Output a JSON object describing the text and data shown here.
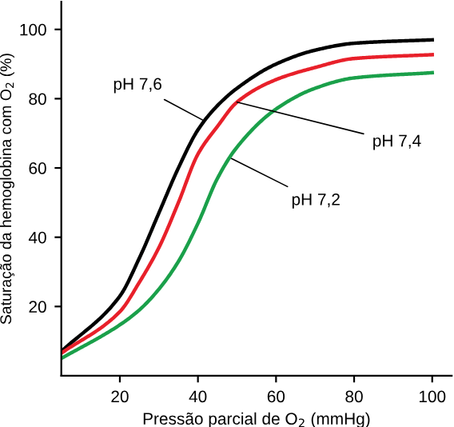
{
  "chart_data": {
    "type": "line",
    "xlabel": "Pressão parcial de O$_{2}$ (mmHg)",
    "ylabel": "Saturação da hemoglobina com O$_{2}$ (%)",
    "xlim": [
      5,
      105
    ],
    "ylim": [
      0,
      108
    ],
    "xticks": [
      20,
      40,
      60,
      80,
      100
    ],
    "yticks": [
      20,
      40,
      60,
      80,
      100
    ],
    "grid": false,
    "marker": "none",
    "line_style": "solid",
    "x": [
      5,
      20,
      25,
      30,
      35,
      40,
      45,
      50,
      60,
      70,
      80,
      100
    ],
    "series": [
      {
        "color": "#000000",
        "values": [
          7,
          23,
          34,
          47,
          60,
          71,
          78,
          83,
          90,
          94,
          96,
          97
        ]
      },
      {
        "color": "#e8202a",
        "values": [
          6.5,
          18.5,
          27,
          37,
          50,
          64,
          72,
          79,
          85.5,
          89,
          91.6,
          92.7
        ]
      },
      {
        "color": "#1aa04a",
        "values": [
          5,
          14.7,
          19,
          25,
          33,
          44,
          57,
          66,
          77,
          83,
          86,
          87.5
        ]
      }
    ],
    "annotations": [
      {
        "text": "pH 7,6",
        "x": 41.6,
        "y": 73.6
      },
      {
        "text": "pH 7,4",
        "x": 50,
        "y": 79
      },
      {
        "text": "pH 7,2",
        "x": 48.6,
        "y": 62.7
      }
    ]
  }
}
